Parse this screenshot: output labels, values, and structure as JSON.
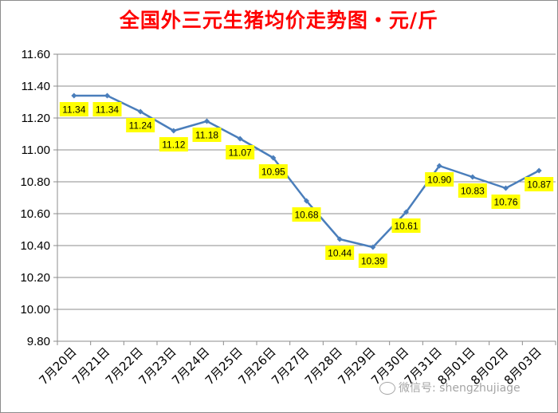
{
  "chart_data": {
    "type": "line",
    "title": "全国外三元生猪均价走势图・元/斤",
    "xlabel": "",
    "ylabel": "",
    "categories": [
      "7月20日",
      "7月21日",
      "7月22日",
      "7月23日",
      "7月24日",
      "7月25日",
      "7月26日",
      "7月27日",
      "7月28日",
      "7月29日",
      "7月30日",
      "7月31日",
      "8月01日",
      "8月02日",
      "8月03日"
    ],
    "series": [
      {
        "values": [
          11.34,
          11.34,
          11.24,
          11.12,
          11.18,
          11.07,
          10.95,
          10.68,
          10.44,
          10.39,
          10.61,
          10.9,
          10.83,
          10.76,
          10.87
        ]
      }
    ],
    "data_labels": [
      "11.34",
      "11.34",
      "11.24",
      "11.12",
      "11.18",
      "11.07",
      "10.95",
      "10.68",
      "10.44",
      "10.39",
      "10.61",
      "10.90",
      "10.83",
      "10.76",
      "10.87"
    ],
    "ylim": [
      9.8,
      11.6
    ],
    "y_ticks": [
      "9.80",
      "10.00",
      "10.20",
      "10.40",
      "10.60",
      "10.80",
      "11.00",
      "11.20",
      "11.40",
      "11.60"
    ],
    "grid": true,
    "line_color": "#4a7ebb",
    "label_bg_color": "#ffff00"
  },
  "watermark": {
    "text": "微信号: shengzhujiage",
    "icon": "wechat-icon"
  }
}
